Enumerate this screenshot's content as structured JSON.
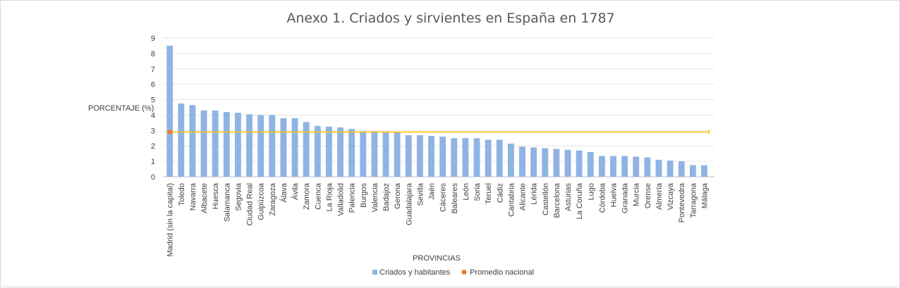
{
  "chart_data": {
    "type": "bar",
    "title": "Anexo 1. Criados y sirvientes en España en 1787",
    "xlabel": "PROVINCIAS",
    "ylabel": "PORCENTAJE (%)",
    "ylim": [
      0,
      9
    ],
    "yticks": [
      "0",
      "1",
      "2",
      "3",
      "4",
      "5",
      "6",
      "7",
      "8",
      "9"
    ],
    "grid": true,
    "legend_position": "bottom",
    "categories": [
      "Madrid (sin la capital)",
      "Toledo",
      "Navarra",
      "Albacete",
      "Huesca",
      "Salamanca",
      "Segovia",
      "Ciudad Real",
      "Guipúzcoa",
      "Zaragoza",
      "Álava",
      "Ávila",
      "Zamora",
      "Cuenca",
      "La Rioja",
      "Valladolid",
      "Palencia",
      "Burgos",
      "Valencia",
      "Badajoz",
      "Gerona",
      "Guadalajara",
      "Sevilla",
      "Jaén",
      "Cáceres",
      "Baleares",
      "León",
      "Soria",
      "Teruel",
      "Cádiz",
      "Cantabria",
      "Alicante",
      "Lérida",
      "Castellón",
      "Barcelona",
      "Asturias",
      "La Coruña",
      "Lugo",
      "Córdoba",
      "Huelva",
      "Granada",
      "Murcia",
      "Orense",
      "Almería",
      "Vizcaya",
      "Pontevedra",
      "Tarragona",
      "Málaga"
    ],
    "series": [
      {
        "name": "Criados y habitantes",
        "color": "#8fb4e3",
        "values": [
          8.5,
          4.75,
          4.65,
          4.3,
          4.3,
          4.2,
          4.15,
          4.05,
          4.0,
          4.0,
          3.8,
          3.8,
          3.55,
          3.3,
          3.25,
          3.2,
          3.1,
          2.95,
          2.95,
          2.9,
          2.9,
          2.7,
          2.7,
          2.65,
          2.6,
          2.5,
          2.5,
          2.5,
          2.4,
          2.4,
          2.15,
          1.95,
          1.9,
          1.85,
          1.8,
          1.75,
          1.7,
          1.6,
          1.35,
          1.35,
          1.35,
          1.3,
          1.25,
          1.1,
          1.05,
          1.0,
          0.75,
          0.75
        ]
      },
      {
        "name": "Promedio nacional",
        "color": "#ed7d31",
        "line_color": "#ffc000",
        "value": 2.9
      }
    ]
  }
}
